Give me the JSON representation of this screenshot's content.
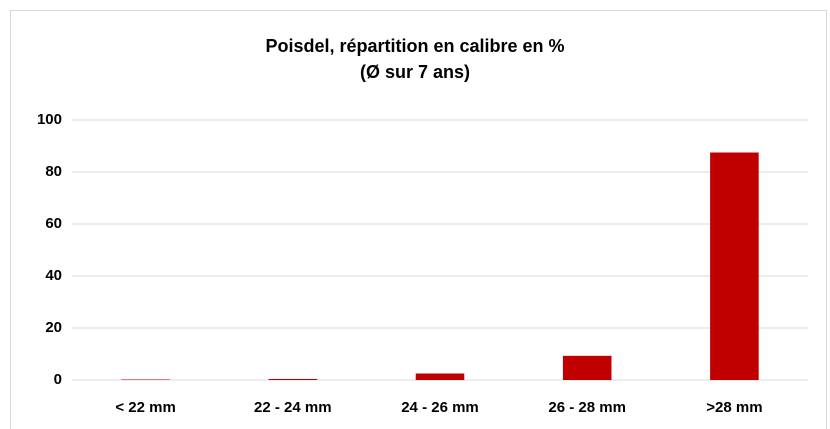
{
  "chart_data": {
    "type": "bar",
    "title": "Poisdel, répartition en calibre en %",
    "subtitle": "(Ø sur 7 ans)",
    "categories": [
      "< 22 mm",
      "22 - 24 mm",
      "24 - 26 mm",
      "26 - 28 mm",
      ">28 mm"
    ],
    "values": [
      0.2,
      0.4,
      2.5,
      9.3,
      87.5
    ],
    "color": "#c00000",
    "ylim": [
      0,
      100
    ],
    "yticks": [
      0,
      20,
      40,
      60,
      80,
      100
    ],
    "grid": true
  }
}
